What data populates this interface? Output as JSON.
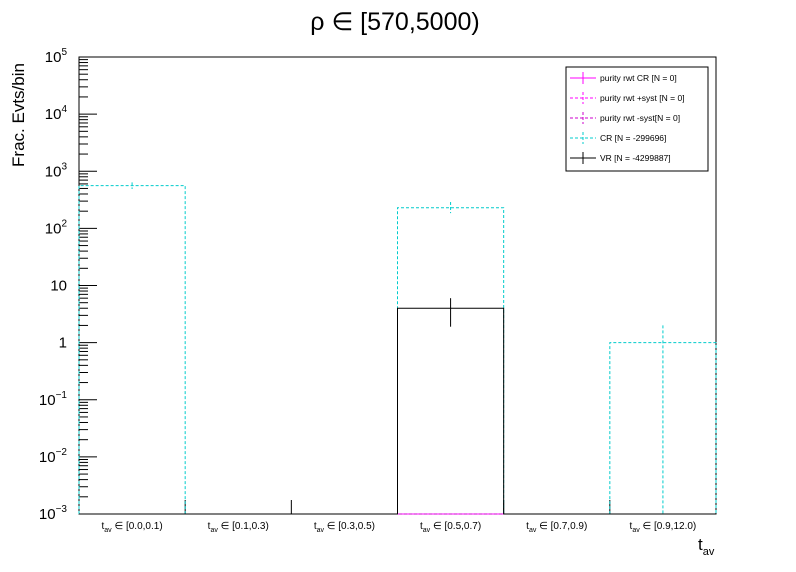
{
  "chart_data": {
    "type": "bar",
    "title": "ρ ∈ [570,5000)",
    "ylabel": "Frac. Evts/bin",
    "xlabel": {
      "main": "t",
      "sub": "av"
    },
    "yscale": "log",
    "ylim": [
      0.001,
      100000
    ],
    "yticks": [
      {
        "value": 0.001,
        "base": "10",
        "exp": "−3"
      },
      {
        "value": 0.01,
        "base": "10",
        "exp": "−2"
      },
      {
        "value": 0.1,
        "base": "10",
        "exp": "−1"
      },
      {
        "value": 1,
        "base": "1",
        "exp": ""
      },
      {
        "value": 10,
        "base": "10",
        "exp": ""
      },
      {
        "value": 100,
        "base": "10",
        "exp": "2"
      },
      {
        "value": 1000,
        "base": "10",
        "exp": "3"
      },
      {
        "value": 10000,
        "base": "10",
        "exp": "4"
      },
      {
        "value": 100000,
        "base": "10",
        "exp": "5"
      }
    ],
    "categories": [
      {
        "pre": "t",
        "sub": "av",
        "post": " ∈ [0.0,0.1)"
      },
      {
        "pre": "t",
        "sub": "av",
        "post": " ∈ [0.1,0.3)"
      },
      {
        "pre": "t",
        "sub": "av",
        "post": " ∈ [0.3,0.5)"
      },
      {
        "pre": "t",
        "sub": "av",
        "post": " ∈ [0.5,0.7)"
      },
      {
        "pre": "t",
        "sub": "av",
        "post": " ∈ [0.7,0.9)"
      },
      {
        "pre": "t",
        "sub": "av",
        "post": " ∈ [0.9,12.0)"
      }
    ],
    "series": [
      {
        "name": "purity rwt CR [N = 0]",
        "color": "#ff00ff",
        "style": "solid",
        "values": [
          0,
          0,
          0,
          0,
          0,
          0
        ]
      },
      {
        "name": "purity rwt +syst [N = 0]",
        "color": "#ff00ff",
        "style": "dashed",
        "values": [
          0,
          0,
          0,
          0,
          0,
          0
        ]
      },
      {
        "name": "purity rwt -syst[N = 0]",
        "color": "#cc00cc",
        "style": "dashed",
        "values": [
          0,
          0,
          0,
          0,
          0,
          0
        ]
      },
      {
        "name": "CR [N = -299696]",
        "color": "#00cccc",
        "style": "dashed",
        "values": [
          560,
          0,
          0,
          230,
          0,
          1
        ],
        "err_lo": [
          490,
          0,
          0,
          185,
          0,
          0.001
        ],
        "err_hi": [
          640,
          0,
          0,
          290,
          0,
          2
        ]
      },
      {
        "name": "VR [N = -4299887]",
        "color": "#000000",
        "style": "solid",
        "values": [
          0,
          0,
          0,
          4,
          0,
          0
        ],
        "err_lo": [
          0,
          0,
          0,
          1.9,
          0,
          0
        ],
        "err_hi": [
          0,
          0,
          0,
          6,
          0,
          0
        ]
      }
    ],
    "legend": "top-right",
    "grid": false
  }
}
